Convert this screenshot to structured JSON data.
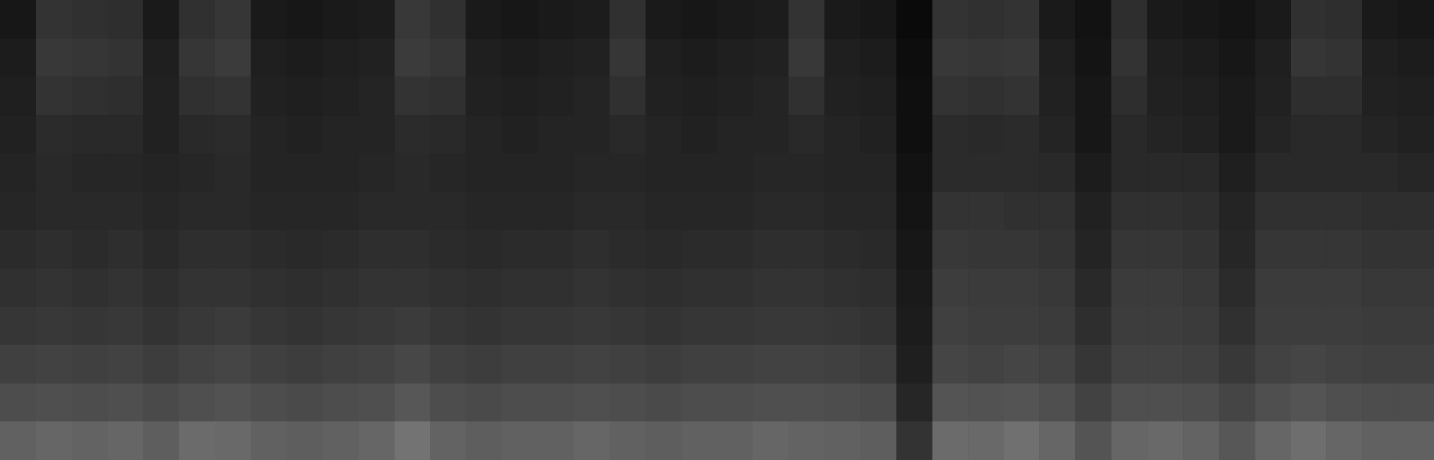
{
  "chart_data": {
    "type": "heatmap",
    "tick_labels": false,
    "cells": [
      [
        0.09,
        0.2,
        0.19,
        0.18,
        0.1,
        0.19,
        0.21,
        0.1,
        0.09,
        0.1,
        0.11,
        0.22,
        0.19,
        0.1,
        0.09,
        0.1,
        0.11,
        0.19,
        0.1,
        0.09,
        0.1,
        0.11,
        0.2,
        0.1,
        0.09,
        0.04,
        0.2,
        0.19,
        0.2,
        0.1,
        0.07,
        0.18,
        0.1,
        0.09,
        0.08,
        0.1,
        0.19,
        0.18,
        0.1,
        0.09
      ],
      [
        0.11,
        0.22,
        0.21,
        0.2,
        0.12,
        0.21,
        0.23,
        0.12,
        0.11,
        0.12,
        0.13,
        0.23,
        0.21,
        0.12,
        0.11,
        0.12,
        0.13,
        0.21,
        0.12,
        0.11,
        0.12,
        0.13,
        0.22,
        0.12,
        0.11,
        0.05,
        0.22,
        0.21,
        0.22,
        0.12,
        0.08,
        0.2,
        0.12,
        0.11,
        0.09,
        0.12,
        0.21,
        0.2,
        0.12,
        0.11
      ],
      [
        0.12,
        0.2,
        0.19,
        0.18,
        0.13,
        0.19,
        0.2,
        0.13,
        0.12,
        0.13,
        0.14,
        0.2,
        0.19,
        0.13,
        0.12,
        0.13,
        0.14,
        0.19,
        0.13,
        0.12,
        0.13,
        0.14,
        0.19,
        0.13,
        0.12,
        0.06,
        0.2,
        0.19,
        0.2,
        0.13,
        0.09,
        0.18,
        0.13,
        0.12,
        0.1,
        0.13,
        0.18,
        0.18,
        0.13,
        0.12
      ],
      [
        0.13,
        0.17,
        0.16,
        0.16,
        0.13,
        0.16,
        0.17,
        0.14,
        0.13,
        0.14,
        0.14,
        0.17,
        0.16,
        0.14,
        0.13,
        0.14,
        0.14,
        0.16,
        0.14,
        0.13,
        0.14,
        0.14,
        0.16,
        0.14,
        0.13,
        0.06,
        0.17,
        0.16,
        0.17,
        0.14,
        0.09,
        0.16,
        0.14,
        0.13,
        0.1,
        0.14,
        0.16,
        0.16,
        0.14,
        0.13
      ],
      [
        0.14,
        0.16,
        0.15,
        0.15,
        0.14,
        0.15,
        0.16,
        0.14,
        0.14,
        0.14,
        0.15,
        0.16,
        0.15,
        0.14,
        0.14,
        0.14,
        0.15,
        0.15,
        0.14,
        0.14,
        0.14,
        0.15,
        0.15,
        0.14,
        0.14,
        0.07,
        0.17,
        0.17,
        0.17,
        0.16,
        0.11,
        0.16,
        0.16,
        0.16,
        0.12,
        0.16,
        0.16,
        0.16,
        0.16,
        0.15
      ],
      [
        0.15,
        0.16,
        0.16,
        0.16,
        0.15,
        0.16,
        0.16,
        0.15,
        0.15,
        0.15,
        0.16,
        0.16,
        0.16,
        0.15,
        0.15,
        0.15,
        0.16,
        0.16,
        0.15,
        0.15,
        0.15,
        0.16,
        0.16,
        0.15,
        0.15,
        0.08,
        0.2,
        0.2,
        0.19,
        0.19,
        0.13,
        0.19,
        0.19,
        0.18,
        0.14,
        0.19,
        0.19,
        0.19,
        0.18,
        0.18
      ],
      [
        0.17,
        0.18,
        0.17,
        0.18,
        0.16,
        0.18,
        0.18,
        0.17,
        0.16,
        0.17,
        0.18,
        0.18,
        0.17,
        0.16,
        0.17,
        0.17,
        0.18,
        0.17,
        0.16,
        0.17,
        0.17,
        0.18,
        0.18,
        0.17,
        0.16,
        0.09,
        0.22,
        0.21,
        0.21,
        0.2,
        0.14,
        0.21,
        0.21,
        0.2,
        0.15,
        0.21,
        0.21,
        0.21,
        0.2,
        0.2
      ],
      [
        0.19,
        0.2,
        0.19,
        0.2,
        0.18,
        0.2,
        0.2,
        0.19,
        0.18,
        0.19,
        0.2,
        0.2,
        0.19,
        0.18,
        0.19,
        0.19,
        0.2,
        0.19,
        0.18,
        0.19,
        0.19,
        0.2,
        0.2,
        0.19,
        0.18,
        0.1,
        0.24,
        0.23,
        0.23,
        0.22,
        0.16,
        0.23,
        0.23,
        0.22,
        0.17,
        0.23,
        0.23,
        0.23,
        0.22,
        0.22
      ],
      [
        0.21,
        0.22,
        0.21,
        0.22,
        0.2,
        0.22,
        0.23,
        0.21,
        0.2,
        0.21,
        0.22,
        0.23,
        0.21,
        0.2,
        0.21,
        0.21,
        0.22,
        0.21,
        0.2,
        0.21,
        0.21,
        0.22,
        0.22,
        0.21,
        0.2,
        0.11,
        0.25,
        0.24,
        0.24,
        0.23,
        0.18,
        0.24,
        0.24,
        0.23,
        0.19,
        0.24,
        0.24,
        0.24,
        0.23,
        0.23
      ],
      [
        0.25,
        0.26,
        0.25,
        0.26,
        0.24,
        0.26,
        0.27,
        0.25,
        0.24,
        0.25,
        0.26,
        0.28,
        0.25,
        0.24,
        0.25,
        0.25,
        0.26,
        0.25,
        0.24,
        0.25,
        0.25,
        0.26,
        0.26,
        0.25,
        0.24,
        0.12,
        0.27,
        0.26,
        0.27,
        0.26,
        0.21,
        0.26,
        0.26,
        0.25,
        0.22,
        0.26,
        0.27,
        0.26,
        0.25,
        0.25
      ],
      [
        0.3,
        0.31,
        0.3,
        0.31,
        0.29,
        0.31,
        0.32,
        0.3,
        0.29,
        0.3,
        0.31,
        0.34,
        0.3,
        0.29,
        0.3,
        0.3,
        0.31,
        0.3,
        0.29,
        0.3,
        0.3,
        0.31,
        0.31,
        0.3,
        0.29,
        0.15,
        0.33,
        0.32,
        0.33,
        0.31,
        0.26,
        0.31,
        0.31,
        0.3,
        0.27,
        0.31,
        0.33,
        0.31,
        0.3,
        0.3
      ],
      [
        0.38,
        0.4,
        0.39,
        0.4,
        0.37,
        0.42,
        0.41,
        0.38,
        0.37,
        0.38,
        0.4,
        0.45,
        0.39,
        0.37,
        0.38,
        0.38,
        0.4,
        0.38,
        0.37,
        0.38,
        0.38,
        0.4,
        0.39,
        0.38,
        0.37,
        0.2,
        0.42,
        0.41,
        0.44,
        0.4,
        0.33,
        0.4,
        0.41,
        0.39,
        0.34,
        0.4,
        0.43,
        0.4,
        0.38,
        0.38
      ]
    ]
  }
}
